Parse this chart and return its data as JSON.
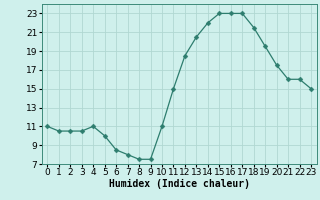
{
  "x": [
    0,
    1,
    2,
    3,
    4,
    5,
    6,
    7,
    8,
    9,
    10,
    11,
    12,
    13,
    14,
    15,
    16,
    17,
    18,
    19,
    20,
    21,
    22,
    23
  ],
  "y": [
    11,
    10.5,
    10.5,
    10.5,
    11,
    10,
    8.5,
    8,
    7.5,
    7.5,
    11,
    15,
    18.5,
    20.5,
    22,
    23,
    23,
    23,
    21.5,
    19.5,
    17.5,
    16,
    16,
    15
  ],
  "line_color": "#2d7d6e",
  "marker": "D",
  "marker_size": 2.5,
  "bg_color": "#cff0ec",
  "grid_color": "#b0d8d2",
  "xlabel": "Humidex (Indice chaleur)",
  "xlim": [
    -0.5,
    23.5
  ],
  "ylim": [
    7,
    24
  ],
  "yticks": [
    7,
    9,
    11,
    13,
    15,
    17,
    19,
    21,
    23
  ],
  "xticks": [
    0,
    1,
    2,
    3,
    4,
    5,
    6,
    7,
    8,
    9,
    10,
    11,
    12,
    13,
    14,
    15,
    16,
    17,
    18,
    19,
    20,
    21,
    22,
    23
  ],
  "label_fontsize": 7,
  "tick_fontsize": 6.5
}
